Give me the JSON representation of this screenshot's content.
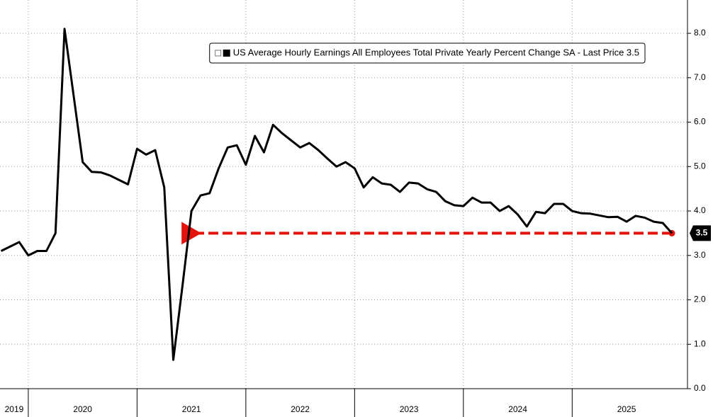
{
  "chart_data": {
    "type": "line",
    "x": [
      2019.75,
      2019.8333,
      2019.9167,
      2020.0,
      2020.0833,
      2020.1667,
      2020.25,
      2020.3333,
      2020.4167,
      2020.5,
      2020.5833,
      2020.6667,
      2020.75,
      2020.8333,
      2020.9167,
      2021.0,
      2021.0833,
      2021.1667,
      2021.25,
      2021.3333,
      2021.4167,
      2021.5,
      2021.5833,
      2021.6667,
      2021.75,
      2021.8333,
      2021.9167,
      2022.0,
      2022.0833,
      2022.1667,
      2022.25,
      2022.3333,
      2022.4167,
      2022.5,
      2022.5833,
      2022.6667,
      2022.75,
      2022.8333,
      2022.9167,
      2023.0,
      2023.0833,
      2023.1667,
      2023.25,
      2023.3333,
      2023.4167,
      2023.5,
      2023.5833,
      2023.6667,
      2023.75,
      2023.8333,
      2023.9167,
      2024.0,
      2024.0833,
      2024.1667,
      2024.25,
      2024.3333,
      2024.4167,
      2024.5,
      2024.5833,
      2024.6667,
      2024.75,
      2024.8333,
      2024.9167,
      2025.0,
      2025.0833,
      2025.1667,
      2025.25,
      2025.3333,
      2025.4167,
      2025.5,
      2025.5833,
      2025.6667,
      2025.75,
      2025.8333,
      2025.9167
    ],
    "series": [
      {
        "name": "US Average Hourly Earnings All Employees Total Private Yearly Percent Change SA - Last Price 3.5",
        "color": "#000000",
        "values": [
          3.1,
          3.2,
          3.3,
          3.0,
          3.1,
          3.1,
          3.5,
          8.1,
          6.6,
          5.1,
          4.88,
          4.87,
          4.8,
          4.7,
          4.6,
          5.4,
          5.27,
          5.37,
          4.53,
          0.65,
          2.3,
          4.0,
          4.35,
          4.4,
          4.96,
          5.43,
          5.48,
          5.04,
          5.69,
          5.32,
          5.94,
          5.75,
          5.59,
          5.43,
          5.53,
          5.37,
          5.18,
          5.0,
          5.1,
          4.96,
          4.53,
          4.76,
          4.62,
          4.59,
          4.43,
          4.64,
          4.62,
          4.49,
          4.43,
          4.22,
          4.13,
          4.11,
          4.3,
          4.19,
          4.19,
          4.0,
          4.11,
          3.92,
          3.65,
          3.98,
          3.95,
          4.16,
          4.16,
          4.0,
          3.95,
          3.94,
          3.9,
          3.86,
          3.87,
          3.76,
          3.89,
          3.85,
          3.76,
          3.73,
          3.5
        ],
        "value_labels": [
          null,
          null,
          null,
          null,
          null,
          null,
          null,
          null,
          null,
          null,
          null,
          null,
          null,
          null,
          null,
          null,
          null,
          null,
          null,
          null,
          null,
          null,
          null,
          null,
          null,
          null,
          null,
          null,
          null,
          null,
          null,
          null,
          null,
          null,
          null,
          null,
          null,
          null,
          null,
          null,
          null,
          null,
          null,
          null,
          null,
          null,
          null,
          null,
          null,
          null,
          null,
          null,
          null,
          null,
          null,
          null,
          null,
          null,
          null,
          null,
          null,
          null,
          null,
          null,
          null,
          null,
          null,
          null,
          null,
          null,
          null,
          null,
          null,
          null,
          "3.5"
        ]
      }
    ],
    "xlim": [
      2019.74,
      2026.06
    ],
    "xticks": [
      2019,
      2020,
      2021,
      2022,
      2023,
      2024,
      2025
    ],
    "ylim": [
      0,
      8.75
    ],
    "yticks": [
      {
        "value": 0,
        "label": "0.0"
      },
      {
        "value": 1,
        "label": "1.0"
      },
      {
        "value": 2,
        "label": "2.0"
      },
      {
        "value": 3,
        "label": "3.0"
      },
      {
        "value": 4,
        "label": "4.0"
      },
      {
        "value": 5,
        "label": "5.0"
      },
      {
        "value": 6,
        "label": "6.0"
      },
      {
        "value": 7,
        "label": "7.0"
      },
      {
        "value": 8,
        "label": "8.0"
      }
    ],
    "grid": true,
    "legend": "top-right",
    "reference_arrow": {
      "x": [
        2025.9167,
        2021.5
      ],
      "y": 3.5,
      "color": "#e3120b"
    }
  }
}
